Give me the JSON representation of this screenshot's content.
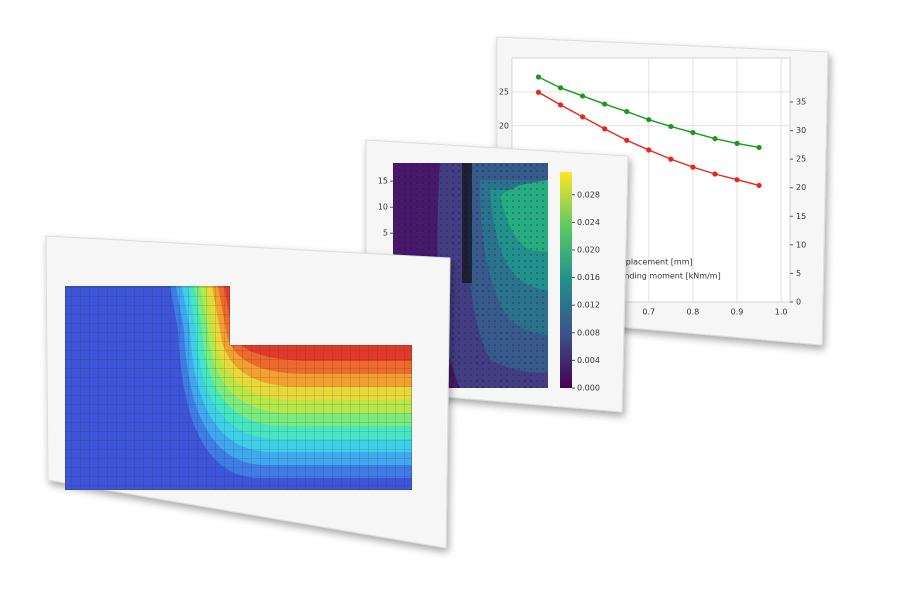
{
  "chart_data": [
    {
      "type": "line",
      "x": [
        0.45,
        0.5,
        0.55,
        0.6,
        0.65,
        0.7,
        0.75,
        0.8,
        0.85,
        0.9,
        0.95
      ],
      "xlim": [
        0.39,
        1.02
      ],
      "xticks": [
        0.7,
        0.8,
        0.9,
        {
          "value": 1,
          "label": "1.0"
        }
      ],
      "ylim": [
        -6,
        30
      ],
      "yticks": [
        20,
        25
      ],
      "y2lim": [
        0,
        42.7
      ],
      "y2ticks": [
        0,
        5,
        10,
        15,
        20,
        25,
        30,
        35
      ],
      "grid": true,
      "series": [
        {
          "name": "m displacement [mm]",
          "color": "#1a9a1a",
          "values": [
            27.2,
            25.6,
            24.4,
            23.2,
            22.1,
            20.9,
            19.9,
            19.0,
            18.1,
            17.4,
            16.8
          ]
        },
        {
          "name": "m bending moment [kNm/m]",
          "color": "#e8261a",
          "axis": "y2",
          "values": [
            36.7,
            34.5,
            32.4,
            30.3,
            28.3,
            26.6,
            25.0,
            23.6,
            22.4,
            21.4,
            20.4
          ]
        }
      ]
    },
    {
      "type": "contour",
      "ylim": [
        -24.8,
        18.5
      ],
      "yticks": [
        5,
        10,
        15
      ],
      "clim": [
        0,
        0.0313
      ],
      "cticks": [
        {
          "value": 0,
          "label": "0.000"
        },
        0.004,
        0.008,
        0.012,
        0.016,
        {
          "value": 0.02,
          "label": "0.020"
        },
        0.024,
        0.028
      ]
    }
  ]
}
